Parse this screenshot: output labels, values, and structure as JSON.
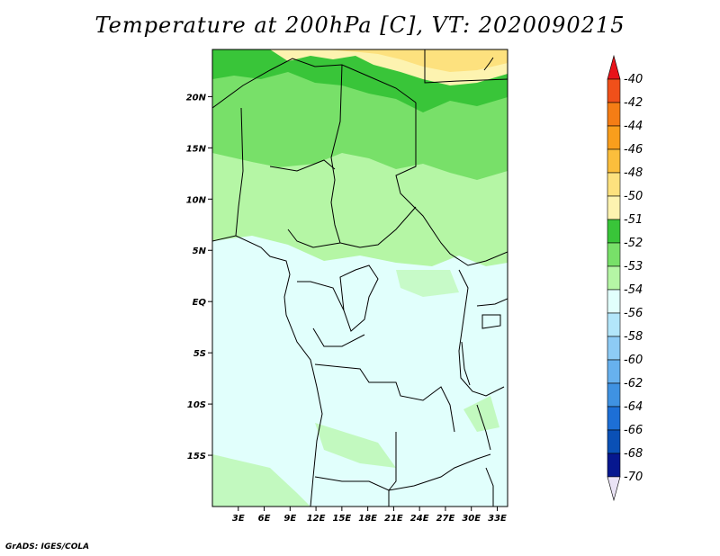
{
  "title": "Temperature at 200hPa [C], VT: 2020090215",
  "credit": "GrADS: IGES/COLA",
  "map": {
    "lat_ticks": [
      {
        "label": "20N",
        "lat": 20
      },
      {
        "label": "15N",
        "lat": 15
      },
      {
        "label": "10N",
        "lat": 10
      },
      {
        "label": "5N",
        "lat": 5
      },
      {
        "label": "EQ",
        "lat": 0
      },
      {
        "label": "5S",
        "lat": -5
      },
      {
        "label": "10S",
        "lat": -10
      },
      {
        "label": "15S",
        "lat": -15
      }
    ],
    "lon_ticks": [
      {
        "label": "3E",
        "lon": 3
      },
      {
        "label": "6E",
        "lon": 6
      },
      {
        "label": "9E",
        "lon": 9
      },
      {
        "label": "12E",
        "lon": 12
      },
      {
        "label": "15E",
        "lon": 15
      },
      {
        "label": "18E",
        "lon": 18
      },
      {
        "label": "21E",
        "lon": 21
      },
      {
        "label": "24E",
        "lon": 24
      },
      {
        "label": "27E",
        "lon": 27
      },
      {
        "label": "30E",
        "lon": 30
      },
      {
        "label": "33E",
        "lon": 33
      }
    ]
  },
  "colorbar": {
    "labels": [
      "-40",
      "-42",
      "-44",
      "-46",
      "-48",
      "-50",
      "-51",
      "-52",
      "-53",
      "-54",
      "-56",
      "-58",
      "-60",
      "-62",
      "-64",
      "-66",
      "-68",
      "-70"
    ],
    "colors": [
      "#e8131a",
      "#f0501a",
      "#f57d15",
      "#f99e1c",
      "#fbbe3c",
      "#fde17e",
      "#fdf3b0",
      "#39c539",
      "#78e069",
      "#b5f6a5",
      "#e1fffc",
      "#b3e6fa",
      "#8dcbf5",
      "#67b1ee",
      "#3f92e2",
      "#1d6fd6",
      "#0a50b6",
      "#06178f",
      "#eae3f5"
    ]
  }
}
